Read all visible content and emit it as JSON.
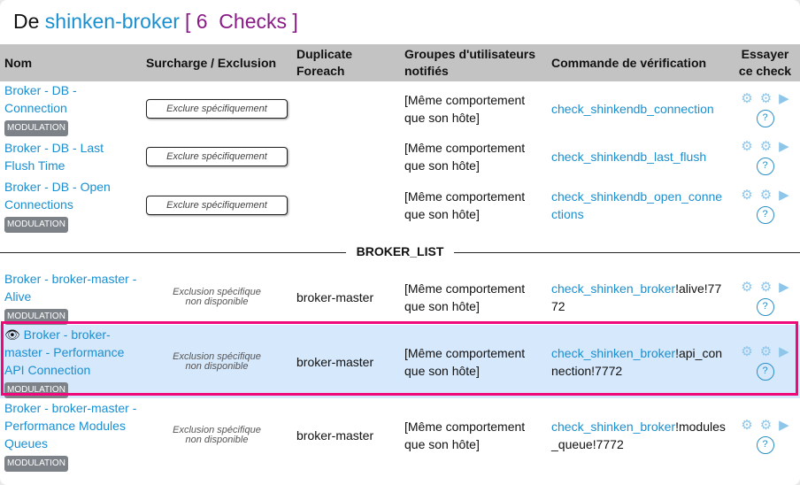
{
  "title": {
    "prefix": "De",
    "host": "shinken-broker",
    "count_label": "[ 6  Checks ]"
  },
  "colors": {
    "link": "#1a8fd0",
    "count": "#8a1a86",
    "highlight_bg": "#d6e8fb",
    "highlight_border": "#f0077a"
  },
  "headers": [
    "Nom",
    "Surcharge / Exclusion",
    "Duplicate Foreach",
    "Groupes d'utilisateurs notifiés",
    "Commande de vérification",
    "Essayer ce check"
  ],
  "exclude_label": "Exclure spécifiquement",
  "not_available_label": "Exclusion spécifique non disponible",
  "badge_label": "MODULATION",
  "separator_label": "BROKER_LIST",
  "rows": [
    {
      "name": "Broker - DB - Connection",
      "groups": "[Même comportement que son hôte]",
      "command": "check_shinkendb_connection",
      "args": ""
    },
    {
      "name": "Broker - DB - Last Flush Time",
      "groups": "[Même comportement que son hôte]",
      "command": "check_shinkendb_last_flush",
      "args": ""
    },
    {
      "name": "Broker - DB - Open Connections",
      "groups": "[Même comportement que son hôte]",
      "command": "check_shinkendb_open_connections",
      "args": ""
    },
    {
      "name": "Broker - broker-master - Alive",
      "duplicate": "broker-master",
      "groups": "[Même comportement que son hôte]",
      "command": "check_shinken_broker",
      "args": "!alive!7772"
    },
    {
      "name": "Broker - broker-master - Performance API Connection",
      "duplicate": "broker-master",
      "groups": "[Même comportement que son hôte]",
      "command": "check_shinken_broker",
      "args": "!api_connection!7772"
    },
    {
      "name": "Broker - broker-master - Performance Modules Queues",
      "duplicate": "broker-master",
      "groups": "[Même comportement que son hôte]",
      "command": "check_shinken_broker",
      "args": "!modules_queue!7772"
    }
  ]
}
